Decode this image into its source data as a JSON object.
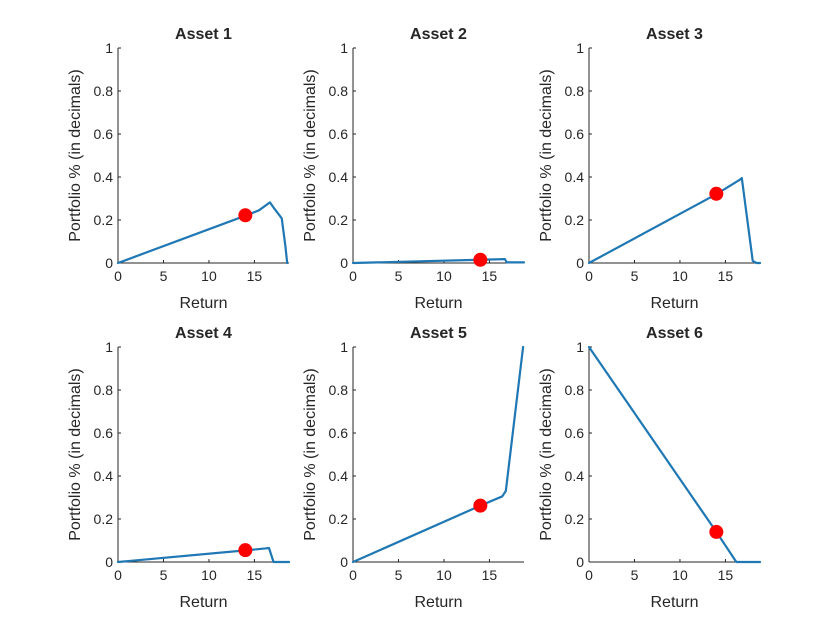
{
  "figure": {
    "background": "#ffffff",
    "line_color": "#1f77b4",
    "marker_color": "#ff0000",
    "axis_color": "#262626"
  },
  "chart_data": [
    {
      "type": "line",
      "title": "Asset 1",
      "xlabel": "Return",
      "ylabel": "Portfolio % (in decimals)",
      "xlim": [
        0,
        18.8
      ],
      "ylim": [
        0,
        1
      ],
      "xticks": [
        "0",
        "5",
        "10",
        "15"
      ],
      "xtick_values": [
        0,
        5,
        10,
        15
      ],
      "yticks": [
        "0",
        "0.2",
        "0.4",
        "0.6",
        "0.8",
        "1"
      ],
      "ytick_values": [
        0,
        0.2,
        0.4,
        0.6,
        0.8,
        1
      ],
      "x": [
        0,
        14,
        15.5,
        16.7,
        17.1,
        18.0,
        18.4,
        18.6
      ],
      "y": [
        0,
        0.22,
        0.245,
        0.282,
        0.258,
        0.208,
        0.08,
        0
      ],
      "marker": {
        "x": 14,
        "y": 0.222
      }
    },
    {
      "type": "line",
      "title": "Asset 2",
      "xlabel": "Return",
      "ylabel": "Portfolio % (in decimals)",
      "xlim": [
        0,
        18.8
      ],
      "ylim": [
        0,
        1
      ],
      "xticks": [
        "0",
        "5",
        "10",
        "15"
      ],
      "xtick_values": [
        0,
        5,
        10,
        15
      ],
      "yticks": [
        "0",
        "0.2",
        "0.4",
        "0.6",
        "0.8",
        "1"
      ],
      "ytick_values": [
        0,
        0.2,
        0.4,
        0.6,
        0.8,
        1
      ],
      "x": [
        0,
        14,
        16.7,
        16.9,
        18.8
      ],
      "y": [
        0,
        0.015,
        0.018,
        0.003,
        0.003
      ],
      "marker": {
        "x": 14,
        "y": 0.015
      }
    },
    {
      "type": "line",
      "title": "Asset 3",
      "xlabel": "Return",
      "ylabel": "Portfolio % (in decimals)",
      "xlim": [
        0,
        18.8
      ],
      "ylim": [
        0,
        1
      ],
      "xticks": [
        "0",
        "5",
        "10",
        "15"
      ],
      "xtick_values": [
        0,
        5,
        10,
        15
      ],
      "yticks": [
        "0",
        "0.2",
        "0.4",
        "0.6",
        "0.8",
        "1"
      ],
      "ytick_values": [
        0,
        0.2,
        0.4,
        0.6,
        0.8,
        1
      ],
      "x": [
        0,
        14,
        16.5,
        16.8,
        18.0,
        18.4,
        18.8
      ],
      "y": [
        0,
        0.32,
        0.385,
        0.395,
        0.01,
        0,
        0
      ],
      "marker": {
        "x": 14,
        "y": 0.322
      }
    },
    {
      "type": "line",
      "title": "Asset 4",
      "xlabel": "Return",
      "ylabel": "Portfolio % (in decimals)",
      "xlim": [
        0,
        18.8
      ],
      "ylim": [
        0,
        1
      ],
      "xticks": [
        "0",
        "5",
        "10",
        "15"
      ],
      "xtick_values": [
        0,
        5,
        10,
        15
      ],
      "yticks": [
        "0",
        "0.2",
        "0.4",
        "0.6",
        "0.8",
        "1"
      ],
      "ytick_values": [
        0,
        0.2,
        0.4,
        0.6,
        0.8,
        1
      ],
      "x": [
        0,
        14,
        16.2,
        16.6,
        17.1,
        18.8
      ],
      "y": [
        0,
        0.054,
        0.063,
        0.065,
        0,
        0
      ],
      "marker": {
        "x": 14,
        "y": 0.055
      }
    },
    {
      "type": "line",
      "title": "Asset 5",
      "xlabel": "Return",
      "ylabel": "Portfolio % (in decimals)",
      "xlim": [
        0,
        18.8
      ],
      "ylim": [
        0,
        1
      ],
      "xticks": [
        "0",
        "5",
        "10",
        "15"
      ],
      "xtick_values": [
        0,
        5,
        10,
        15
      ],
      "yticks": [
        "0",
        "0.2",
        "0.4",
        "0.6",
        "0.8",
        "1"
      ],
      "ytick_values": [
        0,
        0.2,
        0.4,
        0.6,
        0.8,
        1
      ],
      "x": [
        0,
        14,
        16.4,
        16.8,
        18.7
      ],
      "y": [
        0,
        0.262,
        0.305,
        0.33,
        1.0
      ],
      "marker": {
        "x": 14,
        "y": 0.262
      }
    },
    {
      "type": "line",
      "title": "Asset 6",
      "xlabel": "Return",
      "ylabel": "Portfolio % (in decimals)",
      "xlim": [
        0,
        18.8
      ],
      "ylim": [
        0,
        1
      ],
      "xticks": [
        "0",
        "5",
        "10",
        "15"
      ],
      "xtick_values": [
        0,
        5,
        10,
        15
      ],
      "yticks": [
        "0",
        "0.2",
        "0.4",
        "0.6",
        "0.8",
        "1"
      ],
      "ytick_values": [
        0,
        0.2,
        0.4,
        0.6,
        0.8,
        1
      ],
      "x": [
        0,
        14,
        16.2,
        18.8
      ],
      "y": [
        1.0,
        0.14,
        0,
        0
      ],
      "marker": {
        "x": 14,
        "y": 0.14
      }
    }
  ]
}
